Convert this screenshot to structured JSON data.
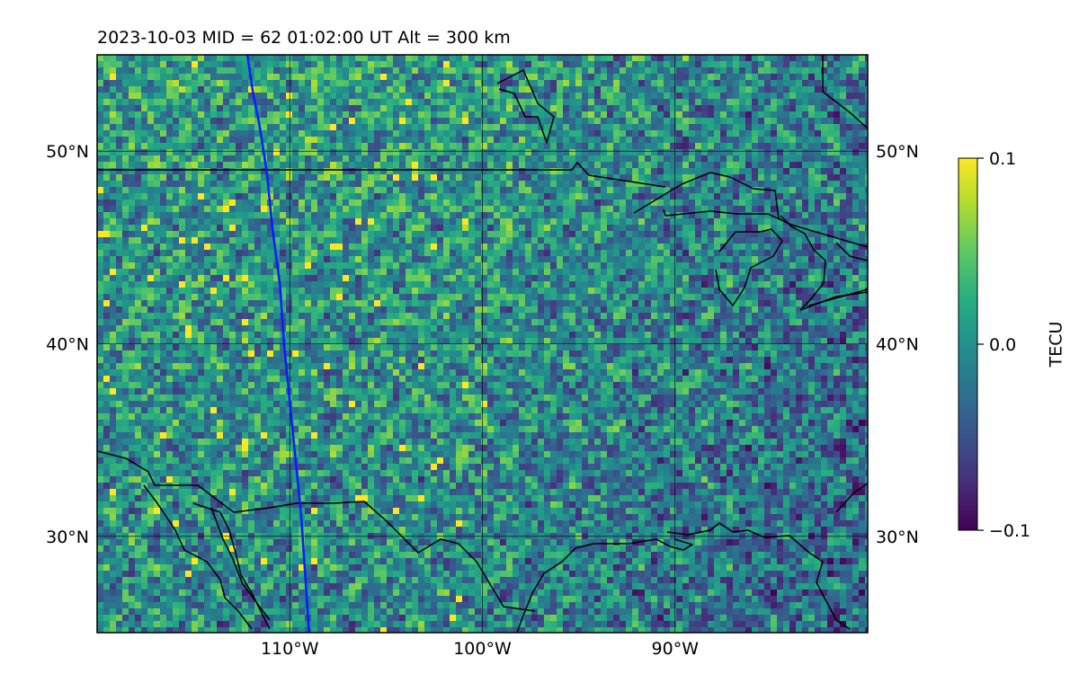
{
  "title": "2023-10-03  MID =  62    01:02:00  UT  Alt = 300 km",
  "map": {
    "extent": {
      "lon_min": -120,
      "lon_max": -80,
      "lat_min": 25,
      "lat_max": 55
    },
    "lat_ticks": [
      {
        "value": 30,
        "label": "30°N"
      },
      {
        "value": 40,
        "label": "40°N"
      },
      {
        "value": 50,
        "label": "50°N"
      }
    ],
    "lon_ticks": [
      {
        "value": -110,
        "label": "110°W"
      },
      {
        "value": -100,
        "label": "100°W"
      },
      {
        "value": -90,
        "label": "90°W"
      }
    ],
    "track_color": "#0a1bff",
    "track": [
      [
        -112.2,
        55
      ],
      [
        -111.9,
        53
      ],
      [
        -111.6,
        51.5
      ],
      [
        -111.2,
        49
      ],
      [
        -110.9,
        46
      ],
      [
        -110.5,
        43
      ],
      [
        -110.3,
        40
      ],
      [
        -110.0,
        37
      ],
      [
        -109.7,
        34
      ],
      [
        -109.4,
        31
      ],
      [
        -109.2,
        28
      ],
      [
        -109.0,
        25
      ]
    ]
  },
  "colorbar": {
    "label": "TECU",
    "min": -0.1,
    "max": 0.1,
    "ticks": [
      {
        "value": 0.1,
        "label": "0.1"
      },
      {
        "value": 0.0,
        "label": "0.0"
      },
      {
        "value": -0.1,
        "label": "−0.1"
      }
    ],
    "colormap": "viridis",
    "stops": [
      "#440154",
      "#472d7b",
      "#3b528b",
      "#2c728e",
      "#21918c",
      "#28ae80",
      "#5ec962",
      "#addc30",
      "#fde725"
    ]
  }
}
